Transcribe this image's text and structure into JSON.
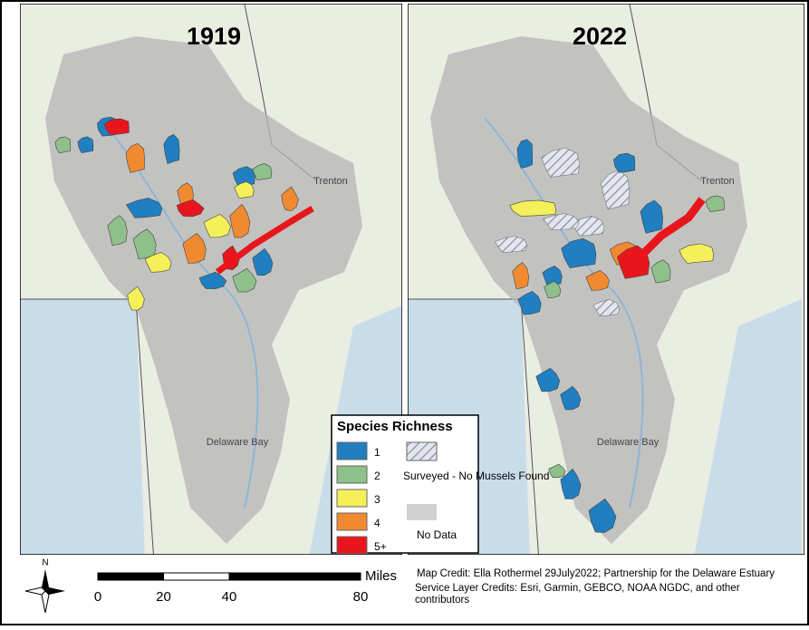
{
  "maps": [
    {
      "year": "1919",
      "city": "Trenton",
      "bay": "Delaware Bay"
    },
    {
      "year": "2022",
      "city": "Trenton",
      "bay": "Delaware Bay"
    }
  ],
  "legend": {
    "title": "Species Richness",
    "items": [
      {
        "label": "1",
        "color": "#1f7fc1"
      },
      {
        "label": "2",
        "color": "#8fbf8a"
      },
      {
        "label": "3",
        "color": "#f5f05a"
      },
      {
        "label": "4",
        "color": "#f08a30"
      },
      {
        "label": "5+",
        "color": "#e8161c"
      }
    ],
    "surveyed": "Surveyed - No Mussels Found",
    "no_data": "No Data"
  },
  "scale": {
    "unit": "Miles",
    "ticks": [
      0,
      20,
      40,
      80
    ]
  },
  "north": "N",
  "credits": {
    "map": "Map Credit: Ella Rothermel 29July2022; Partnership for the Delaware Estuary",
    "service": "Service Layer Credits: Esri, Garmin, GEBCO, NOAA NGDC, and other contributors"
  }
}
